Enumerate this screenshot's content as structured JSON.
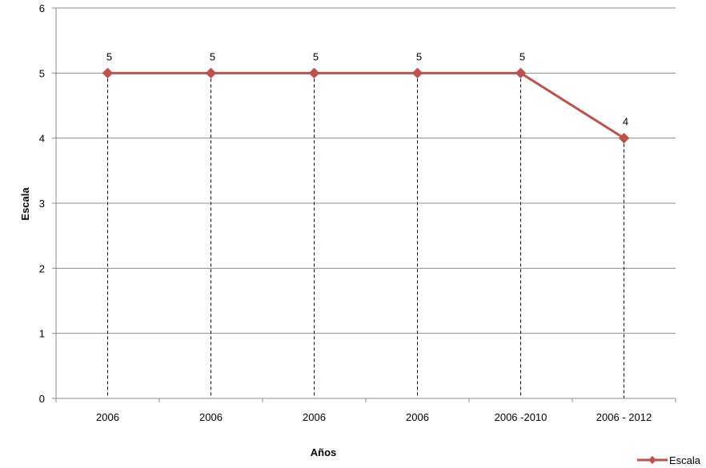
{
  "chart_data": {
    "type": "line",
    "categories": [
      "2006",
      "2006",
      "2006",
      "2006",
      "2006 -2010",
      "2006 - 2012"
    ],
    "series": [
      {
        "name": "Escala",
        "values": [
          5,
          5,
          5,
          5,
          5,
          4
        ],
        "color": "#C0504D"
      }
    ],
    "data_labels": [
      "5",
      "5",
      "5",
      "5",
      "5",
      "4"
    ],
    "xlabel": "Años",
    "ylabel": "Escala",
    "ylim": [
      0,
      6
    ],
    "yticks": [
      "0",
      "1",
      "2",
      "3",
      "4",
      "5",
      "6"
    ],
    "grid": "horizontal solid, vertical dashed drop lines",
    "legend": "bottom-right",
    "marker": "diamond"
  }
}
